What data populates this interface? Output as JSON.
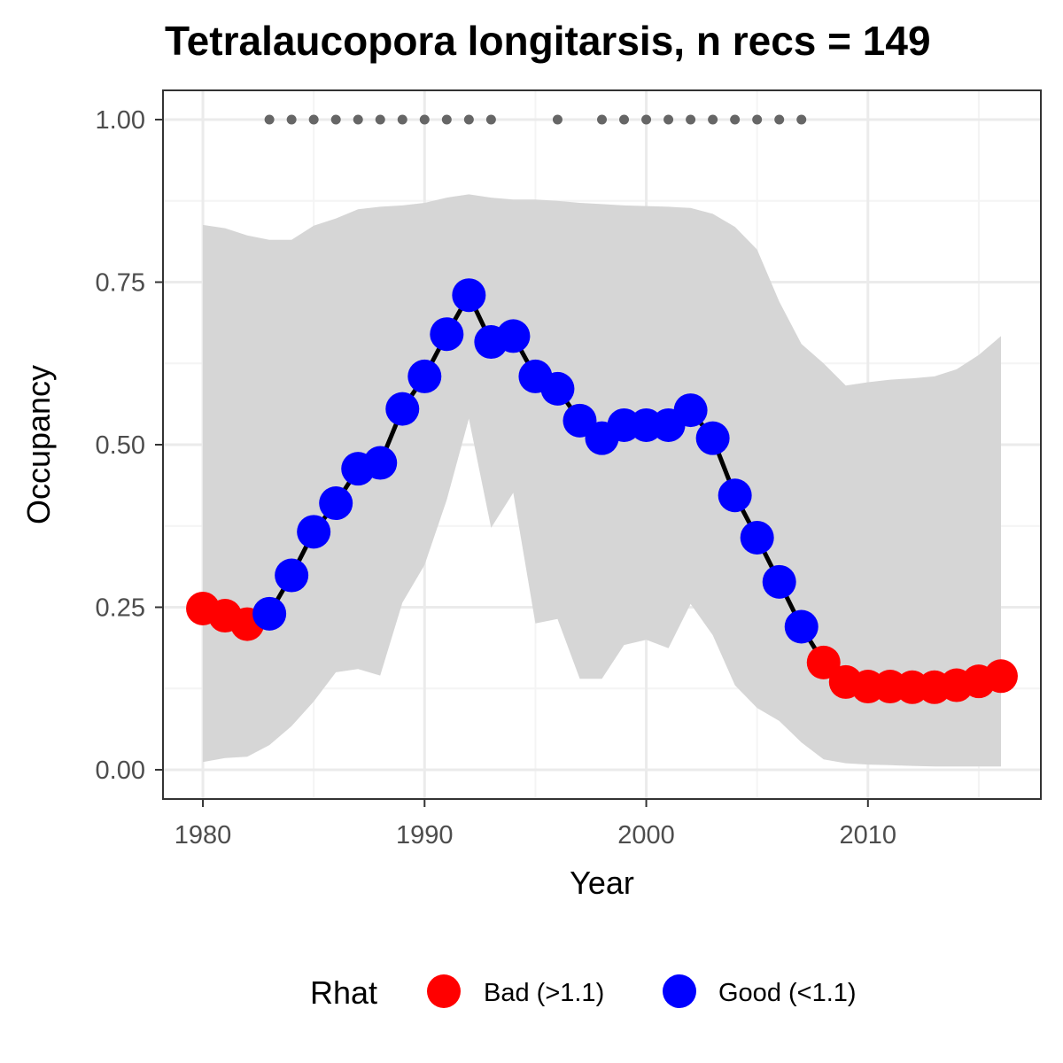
{
  "chart_data": {
    "type": "line",
    "title": "Tetralaucopora longitarsis, n recs = 149",
    "xlabel": "Year",
    "ylabel": "Occupancy",
    "xlim": [
      1978.2,
      2017.8
    ],
    "ylim": [
      -0.045,
      1.045
    ],
    "x_ticks": [
      1980,
      1990,
      2000,
      2010
    ],
    "x_minor_ticks": [
      1985,
      1995,
      2005,
      2015
    ],
    "y_ticks": [
      0.0,
      0.25,
      0.5,
      0.75,
      1.0
    ],
    "y_tick_labels": [
      "0.00",
      "0.25",
      "0.50",
      "0.75",
      "1.00"
    ],
    "y_minor_ticks": [
      0.125,
      0.375,
      0.625,
      0.875
    ],
    "grid": true,
    "legend": {
      "title": "Rhat",
      "position": "bottom",
      "entries": [
        {
          "key": "bad",
          "label": "Bad (>1.1)",
          "color": "#ff0000"
        },
        {
          "key": "good",
          "label": "Good (<1.1)",
          "color": "#0000ff"
        }
      ]
    },
    "x": [
      1980,
      1981,
      1982,
      1983,
      1984,
      1985,
      1986,
      1987,
      1988,
      1989,
      1990,
      1991,
      1992,
      1993,
      1994,
      1995,
      1996,
      1997,
      1998,
      1999,
      2000,
      2001,
      2002,
      2003,
      2004,
      2005,
      2006,
      2007,
      2008,
      2009,
      2010,
      2011,
      2012,
      2013,
      2014,
      2015,
      2016
    ],
    "series": [
      {
        "values": [
          0.248,
          0.237,
          0.224,
          0.24,
          0.299,
          0.366,
          0.41,
          0.463,
          0.472,
          0.555,
          0.605,
          0.67,
          0.73,
          0.658,
          0.667,
          0.605,
          0.586,
          0.537,
          0.51,
          0.53,
          0.53,
          0.53,
          0.553,
          0.51,
          0.422,
          0.357,
          0.289,
          0.22,
          0.165,
          0.135,
          0.128,
          0.128,
          0.127,
          0.127,
          0.13,
          0.136,
          0.144
        ],
        "rhat": [
          "bad",
          "bad",
          "bad",
          "good",
          "good",
          "good",
          "good",
          "good",
          "good",
          "good",
          "good",
          "good",
          "good",
          "good",
          "good",
          "good",
          "good",
          "good",
          "good",
          "good",
          "good",
          "good",
          "good",
          "good",
          "good",
          "good",
          "good",
          "good",
          "bad",
          "bad",
          "bad",
          "bad",
          "bad",
          "bad",
          "bad",
          "bad",
          "bad"
        ],
        "upper": [
          0.838,
          0.833,
          0.822,
          0.815,
          0.815,
          0.837,
          0.848,
          0.862,
          0.866,
          0.868,
          0.872,
          0.88,
          0.885,
          0.88,
          0.877,
          0.877,
          0.875,
          0.872,
          0.87,
          0.868,
          0.867,
          0.866,
          0.864,
          0.855,
          0.835,
          0.8,
          0.72,
          0.655,
          0.625,
          0.591,
          0.596,
          0.6,
          0.602,
          0.605,
          0.616,
          0.638,
          0.667
        ],
        "lower": [
          0.012,
          0.018,
          0.02,
          0.038,
          0.067,
          0.105,
          0.15,
          0.155,
          0.145,
          0.257,
          0.315,
          0.415,
          0.54,
          0.372,
          0.426,
          0.225,
          0.232,
          0.14,
          0.14,
          0.192,
          0.2,
          0.187,
          0.255,
          0.207,
          0.13,
          0.095,
          0.075,
          0.042,
          0.016,
          0.01,
          0.008,
          0.007,
          0.006,
          0.005,
          0.005,
          0.005,
          0.005
        ]
      }
    ],
    "record_years": [
      1983,
      1984,
      1985,
      1986,
      1987,
      1988,
      1989,
      1990,
      1991,
      1992,
      1993,
      1996,
      1998,
      1999,
      2000,
      2001,
      2002,
      2003,
      2004,
      2005,
      2006,
      2007
    ],
    "record_level": 1.0,
    "colors": {
      "ribbon": "#d6d6d6",
      "line": "#000000",
      "record_dot": "#666666",
      "grid_major": "#ebebeb",
      "grid_minor": "#f4f4f4",
      "panel_border": "#333333"
    }
  }
}
